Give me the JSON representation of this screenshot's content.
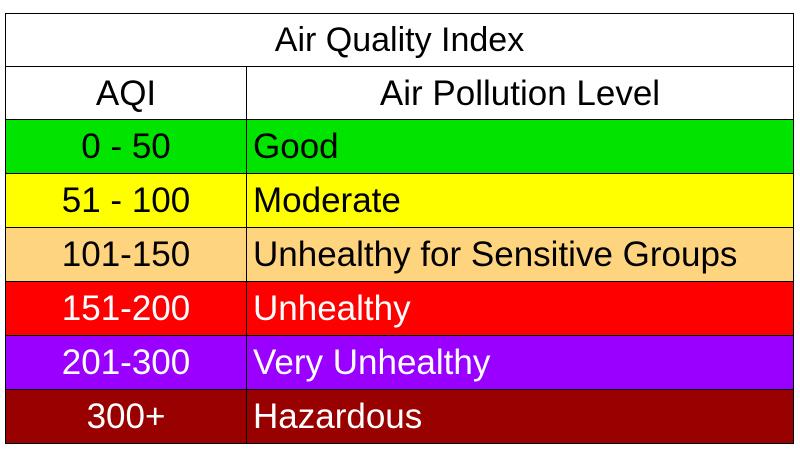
{
  "table": {
    "title": "Air Quality Index",
    "headers": {
      "aqi": "AQI",
      "level": "Air Pollution Level"
    },
    "rows": [
      {
        "aqi": "0 - 50",
        "level": "Good",
        "bg": "#00e400",
        "fg": "#000000"
      },
      {
        "aqi": "51 - 100",
        "level": "Moderate",
        "bg": "#ffff00",
        "fg": "#000000"
      },
      {
        "aqi": "101-150",
        "level": "Unhealthy for Sensitive Groups",
        "bg": "#ffd47f",
        "fg": "#000000"
      },
      {
        "aqi": "151-200",
        "level": "Unhealthy",
        "bg": "#ff0000",
        "fg": "#ffffff"
      },
      {
        "aqi": "201-300",
        "level": "Very Unhealthy",
        "bg": "#9900ff",
        "fg": "#ffffff"
      },
      {
        "aqi": "300+",
        "level": "Hazardous",
        "bg": "#990000",
        "fg": "#ffffff"
      }
    ]
  }
}
